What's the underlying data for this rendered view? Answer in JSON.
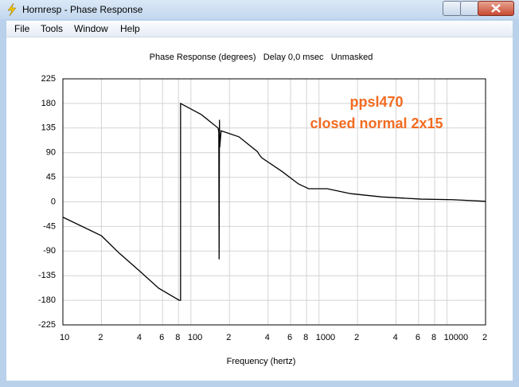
{
  "window": {
    "title": "Hornresp - Phase Response",
    "menu": [
      "File",
      "Tools",
      "Window",
      "Help"
    ]
  },
  "chart_data": {
    "type": "line",
    "title": "Phase Response (degrees)   Delay 0,0 msec   Unmasked",
    "x_label": "Frequency (hertz)",
    "annotations": [
      "ppsl470",
      "closed normal 2x15"
    ],
    "annotation_color": "#f26b21",
    "x_log": true,
    "grid": true,
    "xlim": [
      10,
      20000
    ],
    "ylim": [
      -225,
      225
    ],
    "xticks": [
      10,
      {
        "value": 20,
        "label": "2"
      },
      {
        "value": 40,
        "label": "4"
      },
      {
        "value": 60,
        "label": "6"
      },
      {
        "value": 80,
        "label": "8"
      },
      100,
      {
        "value": 200,
        "label": "2"
      },
      {
        "value": 400,
        "label": "4"
      },
      {
        "value": 600,
        "label": "6"
      },
      {
        "value": 800,
        "label": "8"
      },
      1000,
      {
        "value": 2000,
        "label": "2"
      },
      {
        "value": 4000,
        "label": "4"
      },
      {
        "value": 6000,
        "label": "6"
      },
      {
        "value": 8000,
        "label": "8"
      },
      10000,
      {
        "value": 20000,
        "label": "2"
      }
    ],
    "yticks": [
      225,
      180,
      135,
      90,
      45,
      0,
      -45,
      -90,
      -135,
      -180,
      -225
    ],
    "series": [
      {
        "name": "Phase",
        "color": "#000000",
        "x": [
          10,
          20,
          27.6,
          40,
          56,
          81,
          83,
          83,
          120,
          163,
          165,
          166,
          167,
          168,
          172,
          237,
          330,
          345,
          360,
          512,
          690,
          830,
          1160,
          1770,
          3100,
          6300,
          11000,
          20000
        ],
        "values": [
          -28,
          -62,
          -94,
          -127,
          -158,
          -180,
          -180,
          180,
          160,
          135,
          128,
          -105,
          150,
          100,
          130,
          119,
          92,
          85,
          80,
          56,
          33,
          24,
          24,
          15,
          9,
          5,
          4,
          1
        ]
      }
    ]
  }
}
